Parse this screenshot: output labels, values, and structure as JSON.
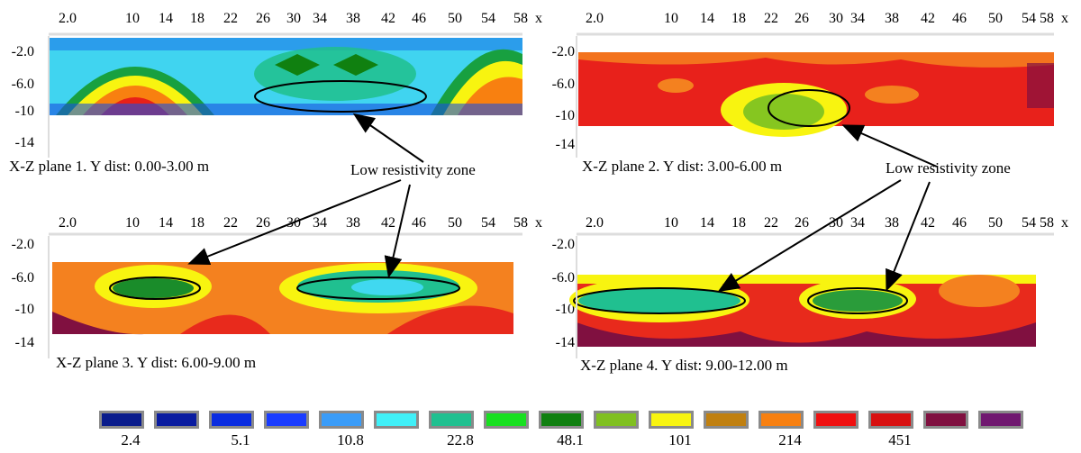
{
  "x_ticks": [
    "2.0",
    "10",
    "14",
    "18",
    "22",
    "26",
    "30",
    "34",
    "38",
    "42",
    "46",
    "50",
    "54",
    "58",
    "x"
  ],
  "x_ticks_panel2": [
    "2.0",
    "10",
    "14",
    "18",
    "22",
    "26",
    "30",
    "34",
    "38",
    "42",
    "46",
    "50",
    "54",
    "58",
    "x"
  ],
  "x_ticks_panel3": [
    "2.0",
    "10",
    "14",
    "18",
    "22",
    "26",
    "30",
    "34",
    "38",
    "42",
    "46",
    "50",
    "54",
    "58",
    "x"
  ],
  "z_ticks": [
    "-2.0",
    "-6.0",
    "-10",
    "-14"
  ],
  "panels": [
    {
      "caption": "X-Z plane 1. Y dist: 0.00-3.00 m",
      "z_min": -2.0,
      "z_max": -10,
      "colors": {
        "base": "#31d7f0",
        "mid": "#7fe3f8",
        "accent": "#2aa86a"
      }
    },
    {
      "caption": "X-Z plane 2. Y dist: 3.00-6.00 m",
      "z_min": -2.0,
      "z_max": -11.5,
      "colors": {
        "base": "#e8211b",
        "mid": "#f08020",
        "accent": "#86c620"
      }
    },
    {
      "caption": "X-Z plane 3. Y dist: 6.00-9.00 m",
      "z_min": -3.5,
      "z_max": -12.5,
      "colors": {
        "base": "#f4811f",
        "mid": "#f5eb1a",
        "accent": "#1a8c2a"
      }
    },
    {
      "caption": "X-Z plane 4. Y dist: 9.00-12.00 m",
      "z_min": -5.0,
      "z_max": -14.5,
      "colors": {
        "base": "#e82a1c",
        "mid": "#f5eb1a",
        "accent": "#2a9c3a"
      }
    }
  ],
  "annotations": [
    {
      "label": "Low resistivity zone"
    },
    {
      "label": "Low resistivity zone"
    }
  ],
  "legend": {
    "colors": [
      "#0a1c8c",
      "#0a1ca0",
      "#0a2ce0",
      "#1a3cff",
      "#3a9cf8",
      "#40f0f8",
      "#20c090",
      "#18e020",
      "#108010",
      "#80c020",
      "#f8f410",
      "#c08010",
      "#f88010",
      "#f01010",
      "#d81010",
      "#801040",
      "#701870"
    ],
    "labels": [
      "2.4",
      "5.1",
      "10.8",
      "22.8",
      "48.1",
      "101",
      "214",
      "451"
    ]
  }
}
